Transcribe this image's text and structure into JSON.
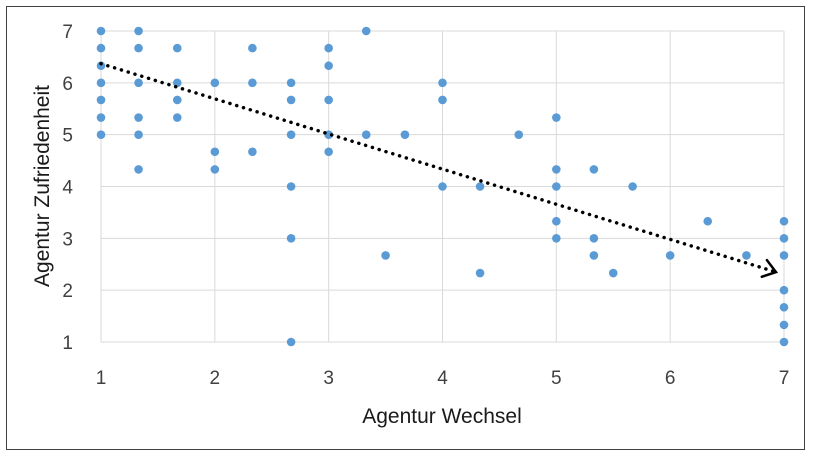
{
  "chart_data": {
    "type": "scatter",
    "xlabel": "Agentur Wechsel",
    "ylabel": "Agentur Zufriedenheit",
    "xlim": [
      1,
      7
    ],
    "ylim": [
      1,
      7
    ],
    "x_ticks": [
      "1",
      "2",
      "3",
      "4",
      "5",
      "6",
      "7"
    ],
    "y_ticks": [
      "1",
      "2",
      "3",
      "4",
      "5",
      "6",
      "7"
    ],
    "grid": true,
    "point_color": "#5b9bd5",
    "trend_color": "#000000",
    "trend_line": {
      "style": "dotted",
      "arrow": true,
      "start": [
        1,
        6.37
      ],
      "end": [
        7,
        2.33
      ]
    },
    "points": [
      [
        1,
        7
      ],
      [
        1,
        6.67
      ],
      [
        1,
        6.33
      ],
      [
        1,
        6
      ],
      [
        1,
        5.67
      ],
      [
        1,
        5.33
      ],
      [
        1,
        5
      ],
      [
        1.33,
        7
      ],
      [
        1.33,
        6.67
      ],
      [
        1.33,
        6
      ],
      [
        1.33,
        5.33
      ],
      [
        1.33,
        5
      ],
      [
        1.33,
        4.33
      ],
      [
        1.67,
        6.67
      ],
      [
        1.67,
        6
      ],
      [
        1.67,
        5.67
      ],
      [
        1.67,
        5.33
      ],
      [
        2,
        6
      ],
      [
        2,
        4.67
      ],
      [
        2,
        4.33
      ],
      [
        2.33,
        6.67
      ],
      [
        2.33,
        6
      ],
      [
        2.33,
        4.67
      ],
      [
        2.67,
        6
      ],
      [
        2.67,
        5.67
      ],
      [
        2.67,
        5
      ],
      [
        2.67,
        4
      ],
      [
        2.67,
        3
      ],
      [
        2.67,
        1
      ],
      [
        3,
        6.67
      ],
      [
        3,
        6.33
      ],
      [
        3,
        5.67
      ],
      [
        3,
        5
      ],
      [
        3,
        4.67
      ],
      [
        3.33,
        7
      ],
      [
        3.33,
        5
      ],
      [
        3.5,
        2.67
      ],
      [
        3.67,
        5
      ],
      [
        4,
        6
      ],
      [
        4,
        5.67
      ],
      [
        4,
        4
      ],
      [
        4.33,
        4
      ],
      [
        4.33,
        2.33
      ],
      [
        4.67,
        5
      ],
      [
        5,
        5.33
      ],
      [
        5,
        4.33
      ],
      [
        5,
        4
      ],
      [
        5,
        3.33
      ],
      [
        5,
        3
      ],
      [
        5.33,
        4.33
      ],
      [
        5.33,
        3
      ],
      [
        5.33,
        2.67
      ],
      [
        5.5,
        2.33
      ],
      [
        5.67,
        4
      ],
      [
        6,
        2.67
      ],
      [
        6.33,
        3.33
      ],
      [
        6.67,
        2.67
      ],
      [
        7,
        3.33
      ],
      [
        7,
        3
      ],
      [
        7,
        2.67
      ],
      [
        7,
        2
      ],
      [
        7,
        1.67
      ],
      [
        7,
        1.33
      ],
      [
        7,
        1
      ]
    ]
  }
}
